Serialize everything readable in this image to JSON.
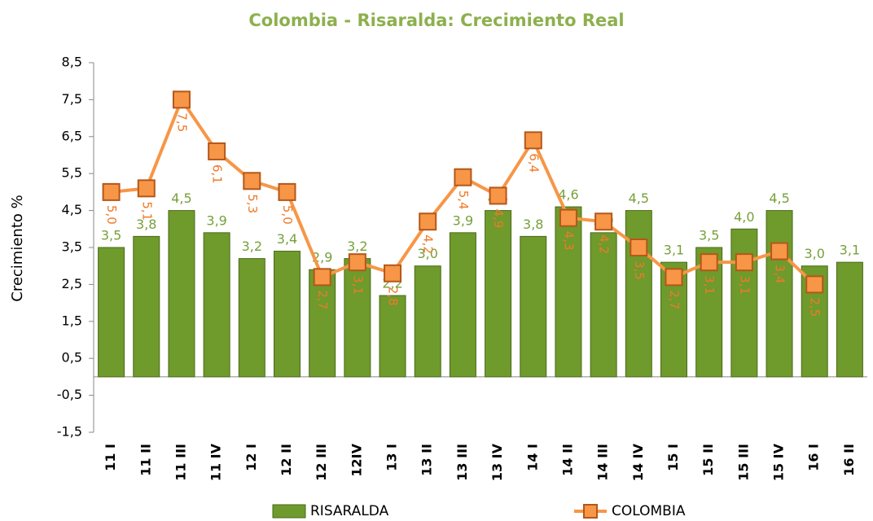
{
  "chart_data": {
    "type": "bar_line",
    "title": "Colombia - Risaralda: Crecimiento Real",
    "y_label": "Crecimiento %",
    "categories": [
      "11 I",
      "11 II",
      "11 III",
      "11 IV",
      "12 I",
      "12 II",
      "12 III",
      "12IV",
      "13 I",
      "13 II",
      "13 III",
      "13 IV",
      "14 I",
      "14 II",
      "14 III",
      "14 IV",
      "15 I",
      "15 II",
      "15 III",
      "15 IV",
      "16 I",
      "16 II"
    ],
    "series": [
      {
        "name": "RISARALDA",
        "type": "bar",
        "color": "#6f9a2c",
        "values": [
          3.5,
          3.8,
          4.5,
          3.9,
          3.2,
          3.4,
          2.9,
          3.2,
          2.2,
          3.0,
          3.9,
          4.5,
          3.8,
          4.6,
          3.9,
          4.5,
          3.1,
          3.5,
          4.0,
          4.5,
          3.0,
          3.1
        ],
        "value_labels": [
          "3,5",
          "3,8",
          "4,5",
          "3,9",
          "3,2",
          "3,4",
          "2,9",
          "3,2",
          "2,2",
          "3,0",
          "3,9",
          "4,5",
          "3,8",
          "4,6",
          "3,9",
          "4,5",
          "3,1",
          "3,5",
          "4,0",
          "4,5",
          "3,0",
          "3,1"
        ]
      },
      {
        "name": "COLOMBIA",
        "type": "line",
        "color": "#f79646",
        "values": [
          5.0,
          5.1,
          7.5,
          6.1,
          5.3,
          5.0,
          2.7,
          3.1,
          2.8,
          4.2,
          5.4,
          4.9,
          6.4,
          4.3,
          4.2,
          3.5,
          2.7,
          3.1,
          3.1,
          3.4,
          2.5,
          null
        ],
        "value_labels": [
          "5,0",
          "5,1",
          "7,5",
          "6,1",
          "5,3",
          "5,0",
          "2,7",
          "3,1",
          "2,8",
          "4,2",
          "5,4",
          "4,9",
          "6,4",
          "4,3",
          "4,2",
          "3,5",
          "2,7",
          "3,1",
          "3,1",
          "3,4",
          "2,5",
          null
        ]
      }
    ],
    "ylim": [
      -1.5,
      8.5
    ],
    "yticks": [
      {
        "value": -1.5,
        "label": "-1,5"
      },
      {
        "value": -0.5,
        "label": "-0,5"
      },
      {
        "value": 0.5,
        "label": "0,5"
      },
      {
        "value": 1.5,
        "label": "1,5"
      },
      {
        "value": 2.5,
        "label": "2,5"
      },
      {
        "value": 3.5,
        "label": "3,5"
      },
      {
        "value": 4.5,
        "label": "4,5"
      },
      {
        "value": 5.5,
        "label": "5,5"
      },
      {
        "value": 6.5,
        "label": "6,5"
      },
      {
        "value": 7.5,
        "label": "7,5"
      },
      {
        "value": 8.5,
        "label": "8,5"
      }
    ],
    "legend": "bottom"
  }
}
